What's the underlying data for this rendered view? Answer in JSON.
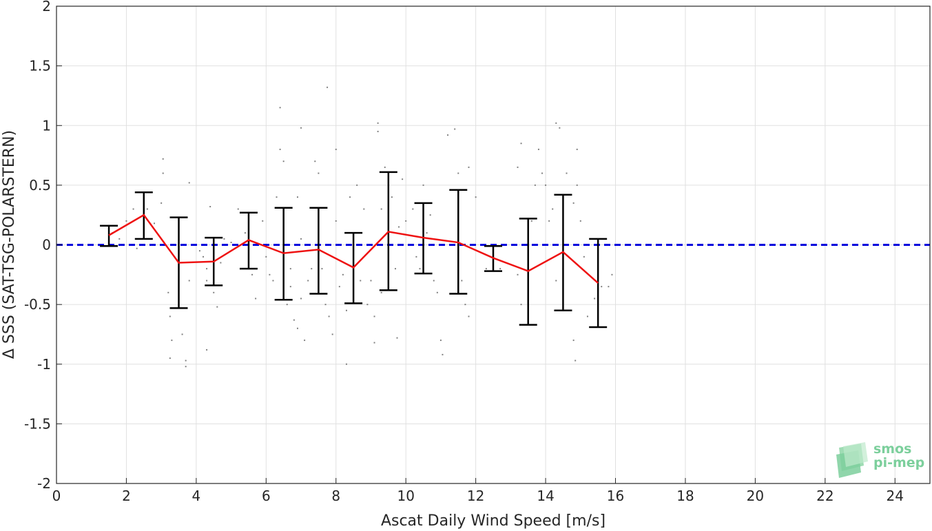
{
  "chart_data": {
    "type": "scatter",
    "xlabel": "Ascat Daily Wind Speed [m/s]",
    "ylabel": "Δ SSS (SAT-TSG-POLARSTERN)",
    "xlim": [
      0,
      25
    ],
    "ylim": [
      -2,
      2
    ],
    "xticks": [
      0,
      2,
      4,
      6,
      8,
      10,
      12,
      14,
      16,
      18,
      20,
      22,
      24
    ],
    "yticks": [
      -2,
      -1.5,
      -1,
      -0.5,
      0,
      0.5,
      1,
      1.5,
      2
    ],
    "ytick_labels": [
      "-2",
      "-1.5",
      "-1",
      "-0.5",
      "0",
      "0.5",
      "1",
      "1.5",
      "2"
    ],
    "grid": true,
    "reference_line": {
      "y": 0,
      "style": "dashed",
      "color": "#0000dd"
    },
    "mean_line_color": "#ee1111",
    "errorbar_color": "#000000",
    "scatter_color": "#808080",
    "bins": [
      {
        "x": 1.5,
        "mean": 0.08,
        "lower": -0.01,
        "upper": 0.16
      },
      {
        "x": 2.5,
        "mean": 0.25,
        "lower": 0.05,
        "upper": 0.44
      },
      {
        "x": 3.5,
        "mean": -0.15,
        "lower": -0.53,
        "upper": 0.23
      },
      {
        "x": 4.5,
        "mean": -0.14,
        "lower": -0.34,
        "upper": 0.06
      },
      {
        "x": 5.5,
        "mean": 0.04,
        "lower": -0.2,
        "upper": 0.27
      },
      {
        "x": 6.5,
        "mean": -0.07,
        "lower": -0.46,
        "upper": 0.31
      },
      {
        "x": 7.5,
        "mean": -0.04,
        "lower": -0.41,
        "upper": 0.31
      },
      {
        "x": 8.5,
        "mean": -0.19,
        "lower": -0.49,
        "upper": 0.1
      },
      {
        "x": 9.5,
        "mean": 0.11,
        "lower": -0.38,
        "upper": 0.61
      },
      {
        "x": 10.5,
        "mean": 0.06,
        "lower": -0.24,
        "upper": 0.35
      },
      {
        "x": 11.5,
        "mean": 0.02,
        "lower": -0.41,
        "upper": 0.46
      },
      {
        "x": 12.5,
        "mean": -0.11,
        "lower": -0.22,
        "upper": -0.01
      },
      {
        "x": 13.5,
        "mean": -0.22,
        "lower": -0.67,
        "upper": 0.22
      },
      {
        "x": 14.5,
        "mean": -0.06,
        "lower": -0.55,
        "upper": 0.42
      },
      {
        "x": 15.5,
        "mean": -0.32,
        "lower": -0.69,
        "upper": 0.05
      }
    ],
    "scatter_points": [
      [
        1.6,
        0.1
      ],
      [
        1.8,
        0.05
      ],
      [
        2.0,
        0.2
      ],
      [
        2.2,
        0.3
      ],
      [
        2.3,
        -0.03
      ],
      [
        2.6,
        0.3
      ],
      [
        2.8,
        0.18
      ],
      [
        3.0,
        0.35
      ],
      [
        3.05,
        0.72
      ],
      [
        3.05,
        0.6
      ],
      [
        3.2,
        -0.4
      ],
      [
        3.25,
        -0.6
      ],
      [
        3.25,
        -0.95
      ],
      [
        3.3,
        -0.8
      ],
      [
        3.5,
        -0.5
      ],
      [
        3.6,
        -0.75
      ],
      [
        3.7,
        -0.97
      ],
      [
        3.7,
        -1.02
      ],
      [
        3.8,
        0.52
      ],
      [
        3.8,
        -0.3
      ],
      [
        4.1,
        -0.05
      ],
      [
        4.2,
        -0.1
      ],
      [
        4.3,
        -0.3
      ],
      [
        4.3,
        -0.2
      ],
      [
        4.4,
        0.32
      ],
      [
        4.5,
        -0.4
      ],
      [
        4.6,
        -0.52
      ],
      [
        4.7,
        -0.15
      ],
      [
        4.8,
        0.05
      ],
      [
        4.3,
        -0.88
      ],
      [
        5.2,
        0.3
      ],
      [
        5.4,
        0.1
      ],
      [
        5.6,
        -0.25
      ],
      [
        5.7,
        -0.45
      ],
      [
        5.9,
        0.2
      ],
      [
        6.0,
        -0.1
      ],
      [
        6.1,
        -0.25
      ],
      [
        6.2,
        -0.3
      ],
      [
        6.3,
        0.4
      ],
      [
        6.4,
        1.15
      ],
      [
        6.4,
        0.8
      ],
      [
        6.5,
        0.7
      ],
      [
        6.6,
        -0.5
      ],
      [
        6.7,
        -0.35
      ],
      [
        6.8,
        -0.63
      ],
      [
        6.9,
        -0.7
      ],
      [
        6.9,
        0.4
      ],
      [
        7.0,
        0.05
      ],
      [
        7.0,
        0.98
      ],
      [
        7.1,
        -0.8
      ],
      [
        7.2,
        -0.3
      ],
      [
        7.3,
        -0.2
      ],
      [
        7.4,
        0.7
      ],
      [
        7.5,
        0.6
      ],
      [
        7.6,
        -0.2
      ],
      [
        7.7,
        -0.5
      ],
      [
        7.75,
        1.32
      ],
      [
        7.8,
        -0.6
      ],
      [
        7.9,
        -0.75
      ],
      [
        8.0,
        0.8
      ],
      [
        8.1,
        -0.35
      ],
      [
        8.2,
        -0.25
      ],
      [
        8.3,
        -0.55
      ],
      [
        8.3,
        -1.0
      ],
      [
        8.4,
        0.4
      ],
      [
        8.5,
        -0.15
      ],
      [
        8.5,
        -0.05
      ],
      [
        8.6,
        0.5
      ],
      [
        8.7,
        -0.3
      ],
      [
        8.8,
        0.3
      ],
      [
        8.9,
        -0.5
      ],
      [
        9.0,
        -0.3
      ],
      [
        9.1,
        -0.6
      ],
      [
        9.1,
        -0.82
      ],
      [
        9.2,
        0.95
      ],
      [
        9.2,
        1.02
      ],
      [
        9.3,
        -0.4
      ],
      [
        9.4,
        0.65
      ],
      [
        9.5,
        0.2
      ],
      [
        9.6,
        0.4
      ],
      [
        9.7,
        -0.2
      ],
      [
        9.75,
        -0.78
      ],
      [
        9.8,
        0.15
      ],
      [
        9.9,
        0.55
      ],
      [
        10.0,
        0.2
      ],
      [
        10.2,
        0.3
      ],
      [
        10.3,
        -0.1
      ],
      [
        10.4,
        -0.2
      ],
      [
        10.5,
        0.5
      ],
      [
        10.6,
        0.1
      ],
      [
        10.8,
        -0.3
      ],
      [
        10.9,
        -0.4
      ],
      [
        11.0,
        -0.8
      ],
      [
        11.05,
        -0.92
      ],
      [
        11.2,
        0.92
      ],
      [
        11.4,
        0.97
      ],
      [
        11.5,
        0.6
      ],
      [
        11.6,
        -0.3
      ],
      [
        11.7,
        -0.5
      ],
      [
        11.8,
        0.65
      ],
      [
        11.8,
        -0.6
      ],
      [
        12.0,
        0.4
      ],
      [
        12.3,
        -0.2
      ],
      [
        12.5,
        0.0
      ],
      [
        12.7,
        -0.2
      ],
      [
        13.2,
        0.65
      ],
      [
        13.3,
        0.85
      ],
      [
        13.3,
        -0.5
      ],
      [
        13.5,
        -0.35
      ],
      [
        13.6,
        0.2
      ],
      [
        13.7,
        0.5
      ],
      [
        13.8,
        0.8
      ],
      [
        13.9,
        0.6
      ],
      [
        14.0,
        0.5
      ],
      [
        14.1,
        0.2
      ],
      [
        14.2,
        0.3
      ],
      [
        14.3,
        1.02
      ],
      [
        14.3,
        -0.3
      ],
      [
        14.4,
        0.98
      ],
      [
        14.5,
        -0.2
      ],
      [
        14.6,
        0.6
      ],
      [
        14.8,
        0.35
      ],
      [
        14.8,
        -0.8
      ],
      [
        14.9,
        0.8
      ],
      [
        14.9,
        0.5
      ],
      [
        15.0,
        0.2
      ],
      [
        15.1,
        -0.1
      ],
      [
        15.2,
        -0.6
      ],
      [
        15.4,
        -0.45
      ],
      [
        15.6,
        -0.35
      ],
      [
        15.8,
        -0.35
      ],
      [
        15.9,
        -0.25
      ],
      [
        14.85,
        -0.97
      ],
      [
        13.2,
        -0.25
      ],
      [
        10.7,
        0.25
      ],
      [
        9.3,
        0.3
      ],
      [
        8.0,
        0.2
      ],
      [
        7.0,
        -0.45
      ],
      [
        6.7,
        -0.2
      ],
      [
        5.0,
        0.02
      ]
    ]
  },
  "logo": {
    "line1": "smos",
    "line2": "pi-mep"
  }
}
